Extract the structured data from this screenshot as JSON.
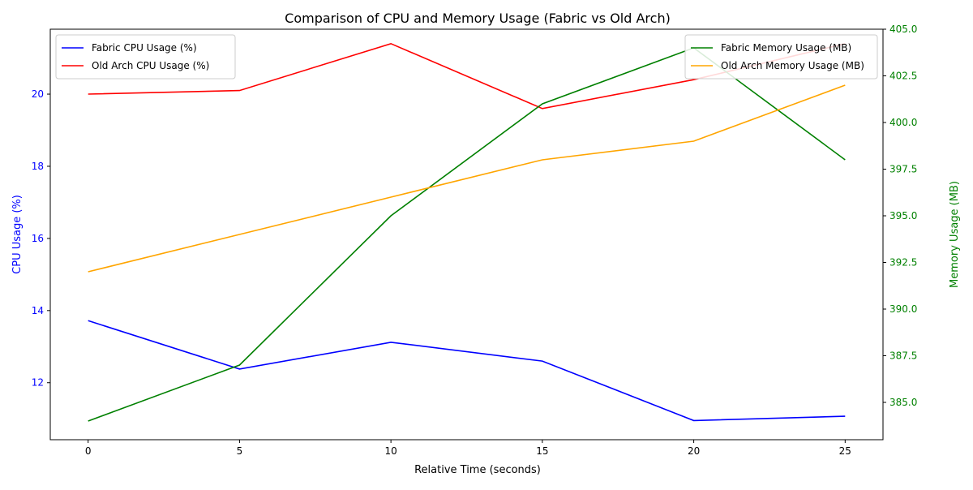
{
  "chart_data": {
    "type": "line",
    "title": "Comparison of CPU and Memory Usage (Fabric vs Old Arch)",
    "xlabel": "Relative Time (seconds)",
    "ylabel_left": "CPU Usage (%)",
    "ylabel_right": "Memory Usage (MB)",
    "x": [
      0,
      5,
      10,
      15,
      20,
      25
    ],
    "xticks": [
      0,
      5,
      10,
      15,
      20,
      25
    ],
    "xlim": [
      -1.25,
      26.25
    ],
    "ylim_left": [
      10.42,
      21.8
    ],
    "yticks_left": [
      12,
      14,
      16,
      18,
      20
    ],
    "ylim_right": [
      383.0,
      405.0
    ],
    "yticks_right": [
      385.0,
      387.5,
      390.0,
      392.5,
      395.0,
      397.5,
      400.0,
      402.5,
      405.0
    ],
    "left_axis_color": "#0000ff",
    "right_axis_color": "#008000",
    "grid": false,
    "legend_left_placement": "top-left",
    "legend_right_placement": "top-right",
    "series_left": [
      {
        "name": "Fabric CPU Usage (%)",
        "color": "#0000ff",
        "values": [
          13.72,
          12.38,
          13.12,
          12.6,
          10.95,
          11.07
        ]
      },
      {
        "name": "Old Arch CPU Usage (%)",
        "color": "#ff0000",
        "values": [
          20.0,
          20.1,
          21.4,
          19.6,
          20.4,
          21.4
        ]
      }
    ],
    "series_right": [
      {
        "name": "Fabric Memory Usage (MB)",
        "color": "#008000",
        "values": [
          384.0,
          387.0,
          395.0,
          401.0,
          404.0,
          398.0
        ]
      },
      {
        "name": "Old Arch Memory Usage (MB)",
        "color": "#ffa500",
        "values": [
          392.0,
          394.0,
          396.0,
          398.0,
          399.0,
          402.0
        ]
      }
    ]
  }
}
